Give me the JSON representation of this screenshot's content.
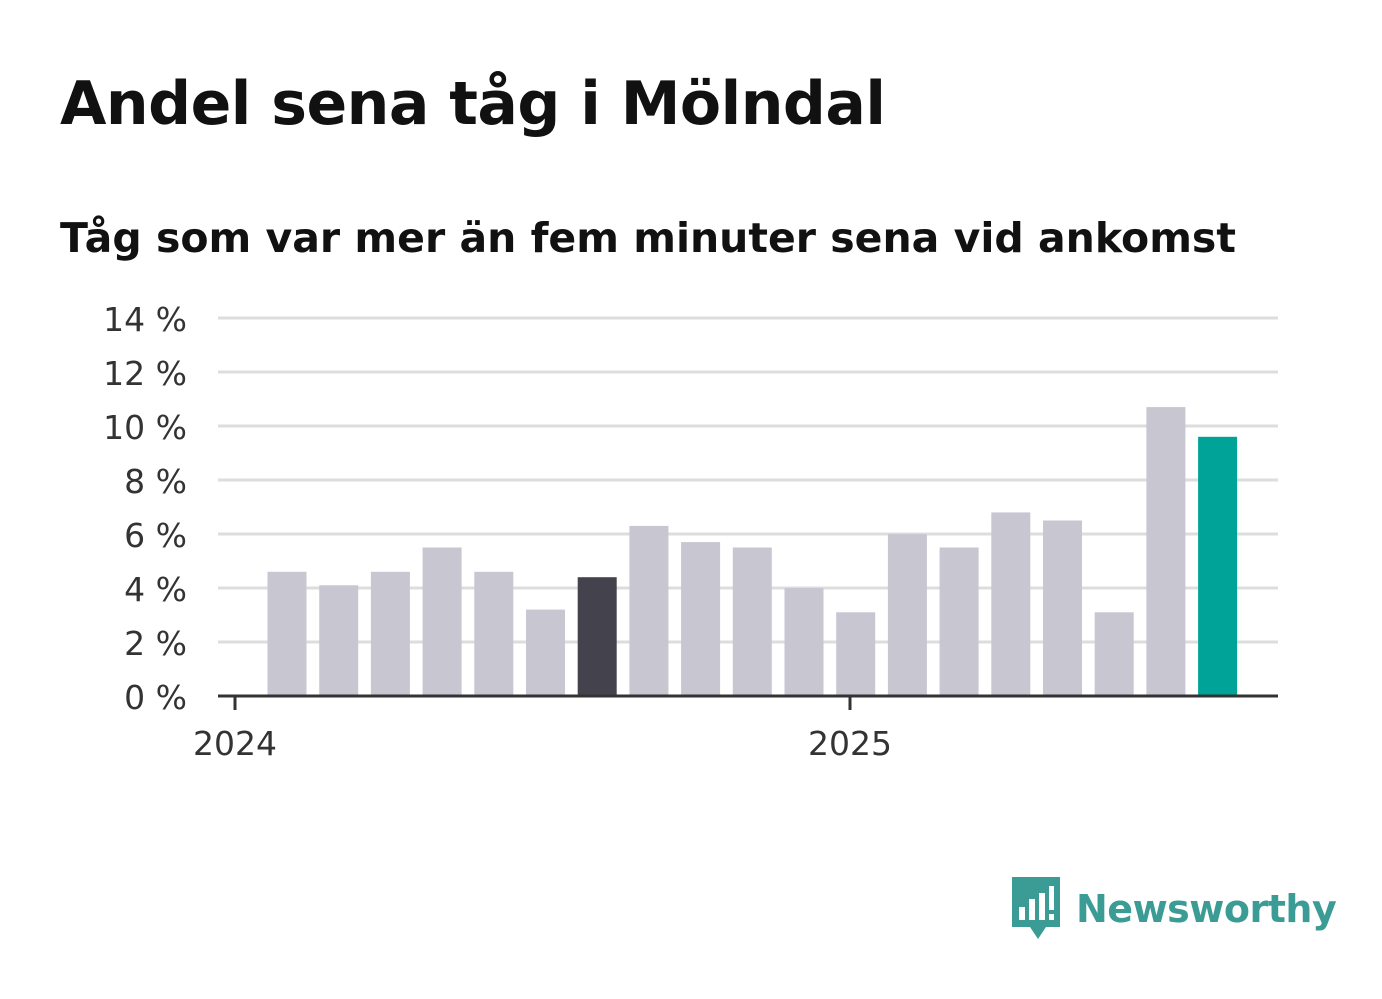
{
  "header": {
    "title": "Andel sena tåg i Mölndal",
    "subtitle": "Tåg som var mer än fem minuter sena vid ankomst"
  },
  "brand": {
    "name": "Newsworthy",
    "icon": "newsworthy-bar-chart-icon",
    "color": "#3a9c94"
  },
  "colors": {
    "bar": "#c8c6d1",
    "highlight_previous_year": "#44434d",
    "highlight_current": "#00a398",
    "grid": "#dddddd",
    "axis": "#333333"
  },
  "chart_data": {
    "type": "bar",
    "title": "Andel sena tåg i Mölndal",
    "subtitle": "Tåg som var mer än fem minuter sena vid ankomst",
    "xlabel": "",
    "ylabel": "",
    "x_tick_labels": [
      "2024",
      "2025"
    ],
    "y_ticks": [
      0,
      2,
      4,
      6,
      8,
      10,
      12,
      14
    ],
    "y_tick_labels": [
      "0 %",
      "2 %",
      "4 %",
      "6 %",
      "8 %",
      "10 %",
      "12 %",
      "14 %"
    ],
    "ylim": [
      0,
      14
    ],
    "grid": true,
    "legend": "none",
    "values": [
      4.6,
      4.1,
      4.6,
      5.5,
      4.6,
      3.2,
      4.4,
      6.3,
      5.7,
      5.5,
      4.0,
      3.1,
      6.0,
      5.5,
      6.8,
      6.5,
      3.1,
      10.7,
      9.6
    ],
    "highlight": {
      "6": "previous_year",
      "18": "current"
    }
  }
}
